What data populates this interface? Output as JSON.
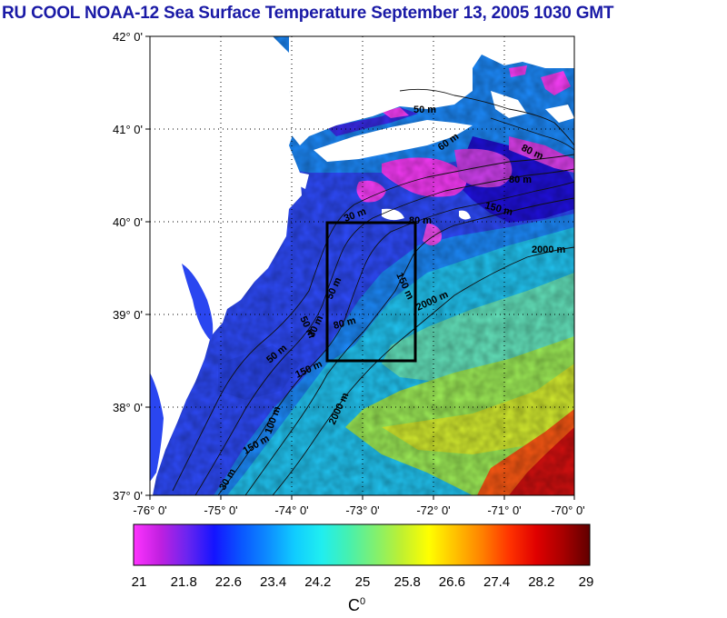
{
  "title": "RU COOL  NOAA-12 Sea Surface Temperature September 13, 2005 1030 GMT",
  "map": {
    "lat_labels": [
      "42° 0'",
      "41° 0'",
      "40° 0'",
      "39° 0'",
      "38° 0'",
      "37° 0'"
    ],
    "lon_labels": [
      "-76° 0'",
      "-75° 0'",
      "-74° 0'",
      "-73° 0'",
      "-72° 0'",
      "-71° 0'",
      "-70° 0'"
    ],
    "lat_range": [
      37,
      42
    ],
    "lon_range": [
      -76,
      -70
    ],
    "study_box": {
      "lon": [
        -73.5,
        -72.3
      ],
      "lat": [
        38.5,
        40.0
      ]
    },
    "contour_labels": [
      "50 m",
      "60 m",
      "80 m",
      "80 m",
      "150 m",
      "80 m",
      "2000 m",
      "30 m",
      "150 m",
      "2000 m",
      "50 m",
      "80 m",
      "50 m",
      "30 m",
      "150 m",
      "2000 m",
      "150 m",
      "50 m",
      "100 m",
      "30 m"
    ]
  },
  "colorbar": {
    "ticks": [
      "21",
      "21.8",
      "22.6",
      "23.4",
      "24.2",
      "25",
      "25.8",
      "26.6",
      "27.4",
      "28.2",
      "29"
    ],
    "unit": "C",
    "unit_sup": "0",
    "colors": [
      "#ff33ff",
      "#c020e0",
      "#6a25f0",
      "#1414ff",
      "#0a55ff",
      "#0d8cff",
      "#10ccff",
      "#20eef0",
      "#45f0b0",
      "#80f070",
      "#c0f030",
      "#ffff00",
      "#ffc000",
      "#ff8000",
      "#ff3300",
      "#e00000",
      "#a80000",
      "#600000"
    ]
  },
  "colors": {
    "title": "#1a1aa6",
    "land": "#ffffff",
    "shelf_water": "#2c5cff",
    "slope_water": "#18c0f4",
    "warm_water": "#9cf05c",
    "gulf_stream": "#ff4020",
    "cold_patch": "#ff40ff"
  }
}
